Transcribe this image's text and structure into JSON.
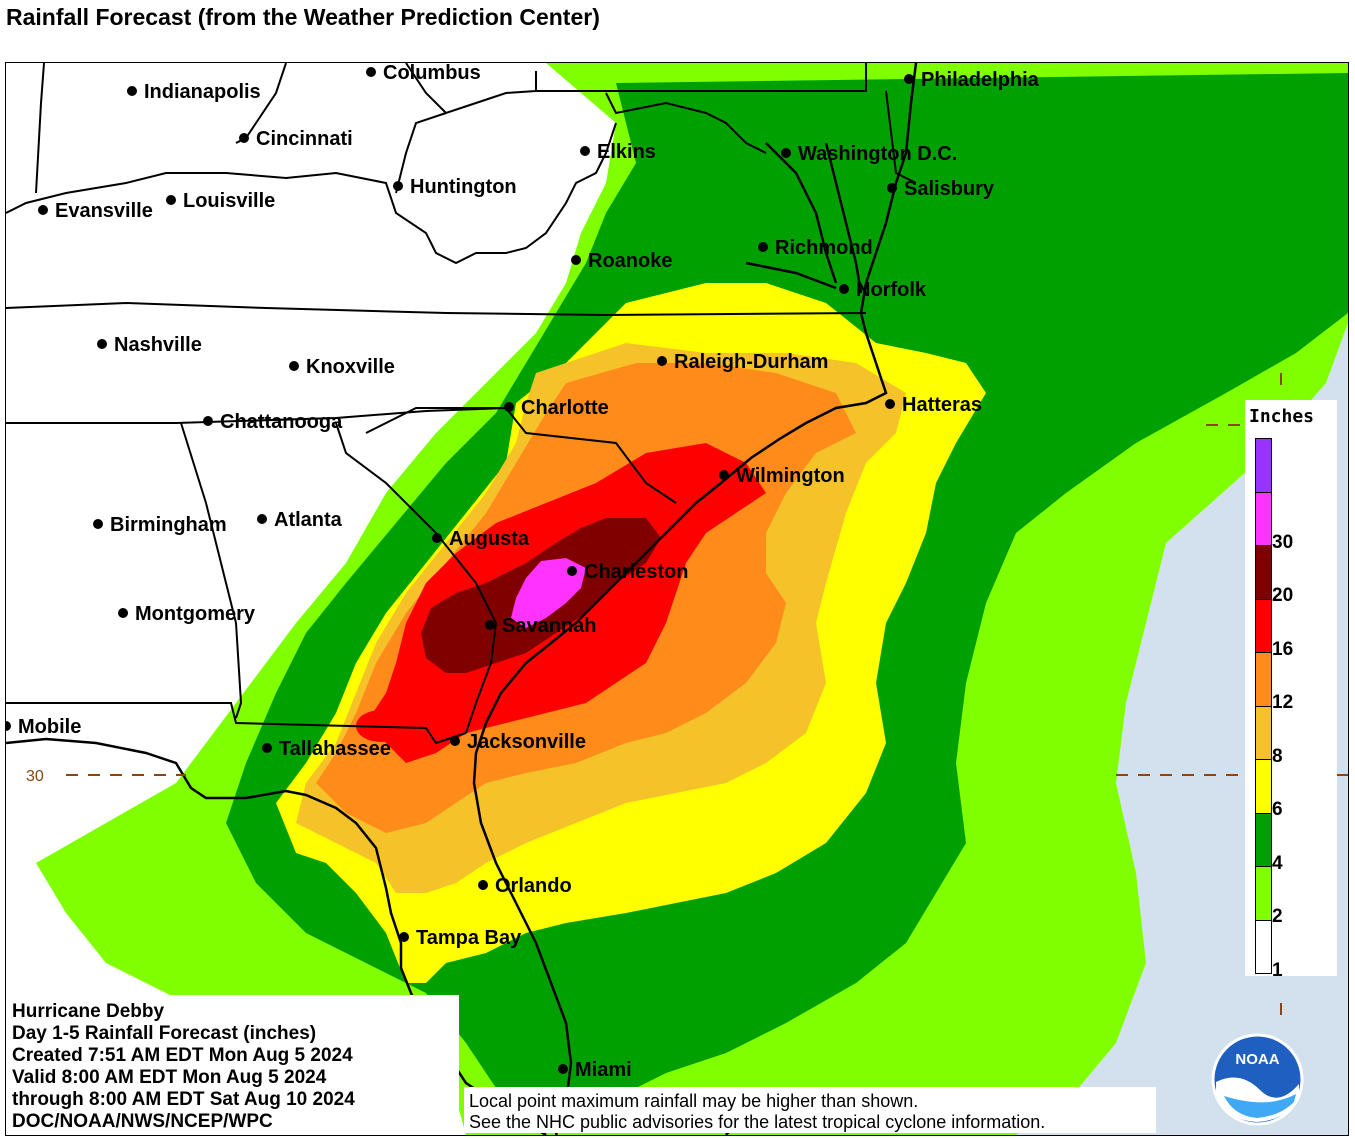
{
  "title": "Rainfall Forecast (from the Weather Prediction Center)",
  "map": {
    "cities": [
      {
        "name": "Columbus"
      },
      {
        "name": "Indianapolis"
      },
      {
        "name": "Cincinnati"
      },
      {
        "name": "Philadelphia"
      },
      {
        "name": "Elkins"
      },
      {
        "name": "Washington D.C."
      },
      {
        "name": "Huntington"
      },
      {
        "name": "Salisbury"
      },
      {
        "name": "Louisville"
      },
      {
        "name": "Evansville"
      },
      {
        "name": "Richmond"
      },
      {
        "name": "Roanoke"
      },
      {
        "name": "Norfolk"
      },
      {
        "name": "Nashville"
      },
      {
        "name": "Knoxville"
      },
      {
        "name": "Raleigh-Durham"
      },
      {
        "name": "Hatteras"
      },
      {
        "name": "Charlotte"
      },
      {
        "name": "Chattanooga"
      },
      {
        "name": "Wilmington"
      },
      {
        "name": "Birmingham"
      },
      {
        "name": "Atlanta"
      },
      {
        "name": "Augusta"
      },
      {
        "name": "Charleston"
      },
      {
        "name": "Montgomery"
      },
      {
        "name": "Savannah"
      },
      {
        "name": "Mobile"
      },
      {
        "name": "Tallahassee"
      },
      {
        "name": "Jacksonville"
      },
      {
        "name": "Orlando"
      },
      {
        "name": "Tampa Bay"
      },
      {
        "name": "Miami"
      }
    ],
    "latitude_label": "30"
  },
  "legend": {
    "title": "Inches",
    "bins": [
      {
        "label": "",
        "color": "#9933ff"
      },
      {
        "label": "30",
        "color": "#ff33ff"
      },
      {
        "label": "20",
        "color": "#800000"
      },
      {
        "label": "16",
        "color": "#ff0000"
      },
      {
        "label": "12",
        "color": "#ff8c1a"
      },
      {
        "label": "8",
        "color": "#f5c22a"
      },
      {
        "label": "6",
        "color": "#ffff00"
      },
      {
        "label": "4",
        "color": "#00a000"
      },
      {
        "label": "2",
        "color": "#7fff00"
      },
      {
        "label": "1",
        "color": "#ffffff"
      }
    ]
  },
  "colors": {
    "ocean": "#d3e1ee",
    "land_none": "#ffffff",
    "light_green": "#7fff00",
    "green": "#00a000",
    "yellow": "#ffff00",
    "gold": "#f5c22a",
    "orange": "#ff8c1a",
    "red": "#ff0000",
    "dark_red": "#800000",
    "magenta": "#ff33ff"
  },
  "info": {
    "line1": "Hurricane Debby",
    "line2": "Day 1-5 Rainfall Forecast (inches)",
    "line3": "Created 7:51 AM EDT Mon Aug 5 2024",
    "line4": "Valid 8:00 AM EDT Mon Aug 5 2024",
    "line5": "through 8:00 AM EDT Sat Aug 10 2024",
    "line6": "DOC/NOAA/NWS/NCEP/WPC"
  },
  "note": {
    "line1": "Local point maximum rainfall may be higher than shown.",
    "line2": "See the NHC public advisories for the latest tropical cyclone information."
  },
  "logo": {
    "text": "NOAA",
    "icon": "noaa-logo-icon"
  }
}
